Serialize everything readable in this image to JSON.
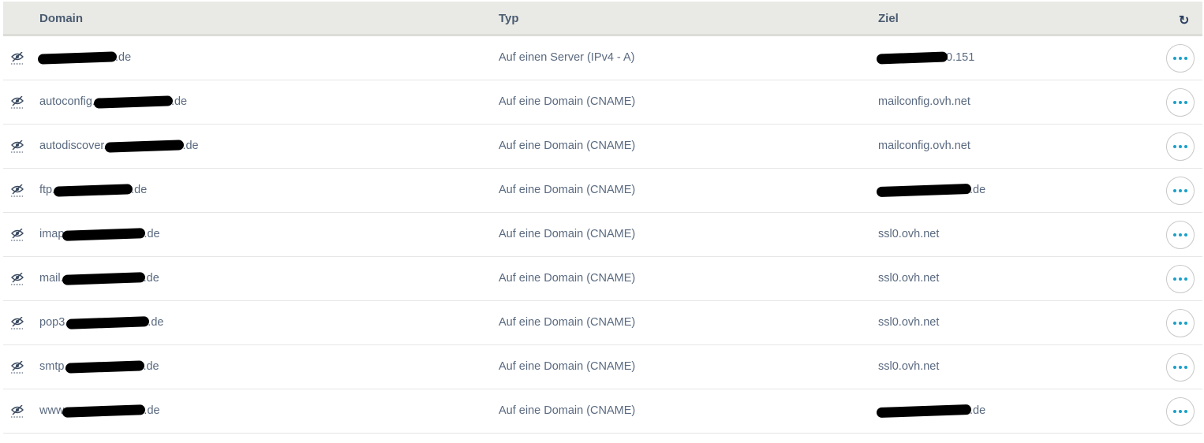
{
  "header": {
    "domain": "Domain",
    "type": "Typ",
    "target": "Ziel",
    "refresh_icon": "refresh-icon"
  },
  "accent": "#1aa0c8",
  "rows": [
    {
      "domain_prefix": "",
      "domain_suffix": ".de",
      "type": "Auf einen Server (IPv4 - A)",
      "target_prefix": "",
      "target_suffix": "0.151"
    },
    {
      "domain_prefix": "autoconfig.",
      "domain_suffix": ".de",
      "type": "Auf eine Domain (CNAME)",
      "target_prefix": "mailconfig.ovh.net",
      "target_suffix": ""
    },
    {
      "domain_prefix": "autodiscover.",
      "domain_suffix": ".de",
      "type": "Auf eine Domain (CNAME)",
      "target_prefix": "mailconfig.ovh.net",
      "target_suffix": ""
    },
    {
      "domain_prefix": "ftp.",
      "domain_suffix": ".de",
      "type": "Auf eine Domain (CNAME)",
      "target_prefix": "",
      "target_suffix": ".de"
    },
    {
      "domain_prefix": "imap",
      "domain_suffix": ".de",
      "type": "Auf eine Domain (CNAME)",
      "target_prefix": "ssl0.ovh.net",
      "target_suffix": ""
    },
    {
      "domain_prefix": "mail.",
      "domain_suffix": ".de",
      "type": "Auf eine Domain (CNAME)",
      "target_prefix": "ssl0.ovh.net",
      "target_suffix": ""
    },
    {
      "domain_prefix": "pop3.",
      "domain_suffix": ".de",
      "type": "Auf eine Domain (CNAME)",
      "target_prefix": "ssl0.ovh.net",
      "target_suffix": ""
    },
    {
      "domain_prefix": "smtp.",
      "domain_suffix": ".de",
      "type": "Auf eine Domain (CNAME)",
      "target_prefix": "ssl0.ovh.net",
      "target_suffix": ""
    },
    {
      "domain_prefix": "www",
      "domain_suffix": ".de",
      "type": "Auf eine Domain (CNAME)",
      "target_prefix": "",
      "target_suffix": ".de"
    }
  ]
}
